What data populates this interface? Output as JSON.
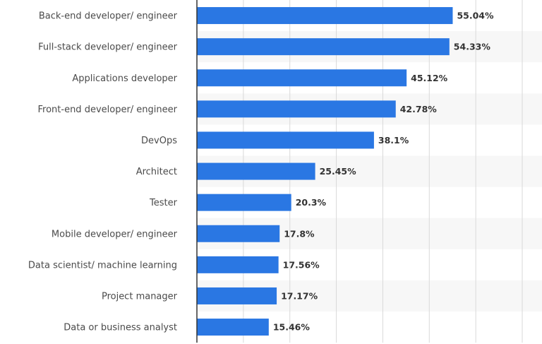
{
  "chart_data": {
    "type": "bar",
    "orientation": "horizontal",
    "categories": [
      "Back-end developer/ engineer",
      "Full-stack developer/ engineer",
      "Applications developer",
      "Front-end developer/ engineer",
      "DevOps",
      "Architect",
      "Tester",
      "Mobile developer/ engineer",
      "Data scientist/ machine learning",
      "Project manager",
      "Data or business analyst"
    ],
    "values": [
      55.04,
      54.33,
      45.12,
      42.78,
      38.1,
      25.45,
      20.3,
      17.8,
      17.56,
      17.17,
      15.46
    ],
    "value_labels": [
      "55.04%",
      "54.33%",
      "45.12%",
      "42.78%",
      "38.1%",
      "25.45%",
      "20.3%",
      "17.8%",
      "17.56%",
      "17.17%",
      "15.46%"
    ],
    "xlim": [
      0,
      70
    ],
    "grid": true,
    "bar_color": "#2a77e3"
  }
}
